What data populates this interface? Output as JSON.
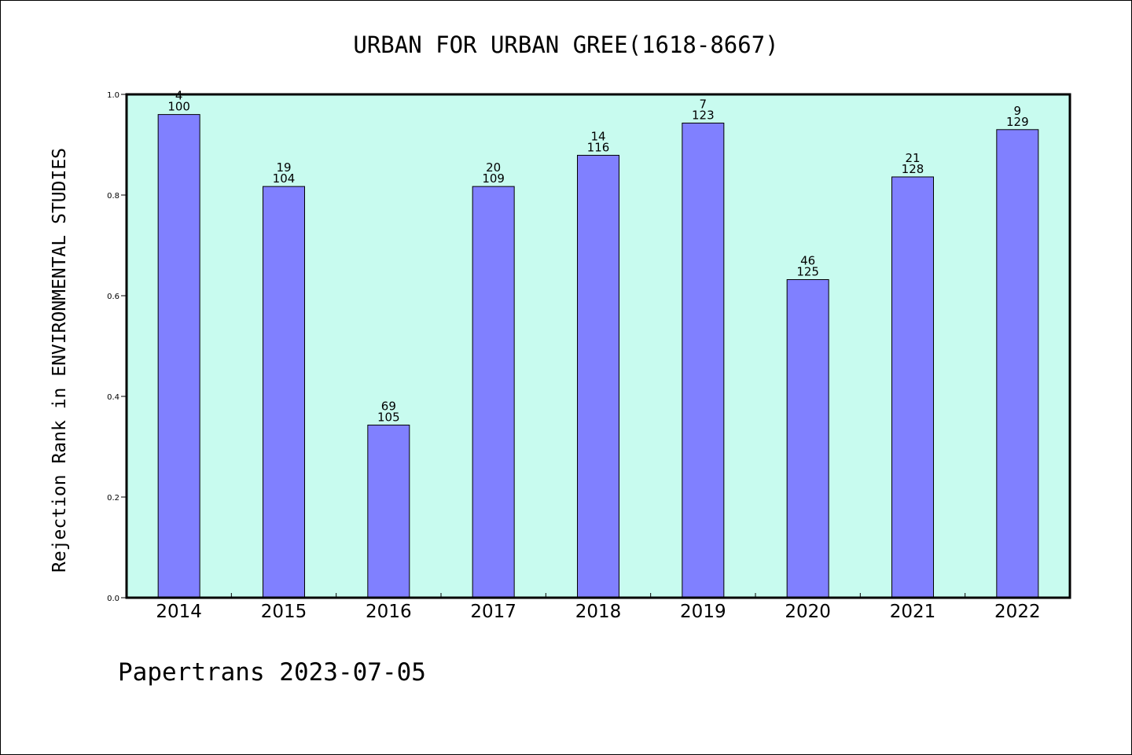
{
  "chart_data": {
    "type": "bar",
    "title": "URBAN FOR URBAN GREE(1618-8667)",
    "xlabel": "",
    "ylabel": "Rejection Rank in ENVIRONMENTAL STUDIES",
    "ylim": [
      0.0,
      1.0
    ],
    "yticks": [
      "0.0",
      "0.2",
      "0.4",
      "0.6",
      "0.8",
      "1.0"
    ],
    "categories": [
      "2014",
      "2015",
      "2016",
      "2017",
      "2018",
      "2019",
      "2020",
      "2021",
      "2022"
    ],
    "values": [
      0.96,
      0.817,
      0.343,
      0.817,
      0.879,
      0.943,
      0.632,
      0.836,
      0.93
    ],
    "rank_labels": [
      "4",
      "19",
      "69",
      "20",
      "14",
      "7",
      "46",
      "21",
      "9"
    ],
    "total_labels": [
      "100",
      "104",
      "105",
      "109",
      "116",
      "123",
      "125",
      "128",
      "129"
    ],
    "grid": false,
    "colors": {
      "plot_background": "#c8fbef",
      "bar_fill": "#8080ff",
      "bar_edge": "#000000"
    }
  },
  "footer": {
    "text": "Papertrans 2023-07-05"
  }
}
